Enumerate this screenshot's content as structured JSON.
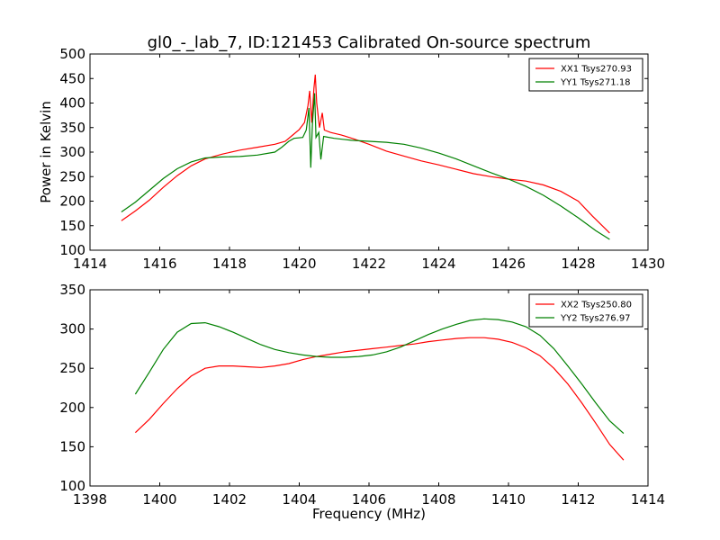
{
  "title": "gl0_-_lab_7, ID:121453 Calibrated On-source spectrum",
  "chart_data": [
    {
      "type": "line",
      "xlabel": "",
      "ylabel": "Power in Kelvin",
      "xlim": [
        1414,
        1430
      ],
      "ylim": [
        100,
        500
      ],
      "xticks": [
        1414,
        1416,
        1418,
        1420,
        1422,
        1424,
        1426,
        1428,
        1430
      ],
      "yticks": [
        100,
        150,
        200,
        250,
        300,
        350,
        400,
        450,
        500
      ],
      "legend_position": "top-right",
      "series": [
        {
          "name": "XX1 Tsys270.93",
          "color": "#ff0000",
          "points": [
            [
              1414.9,
              160
            ],
            [
              1415.3,
              180
            ],
            [
              1415.7,
              202
            ],
            [
              1416.1,
              228
            ],
            [
              1416.5,
              252
            ],
            [
              1416.9,
              272
            ],
            [
              1417.3,
              286
            ],
            [
              1417.8,
              296
            ],
            [
              1418.3,
              304
            ],
            [
              1418.8,
              310
            ],
            [
              1419.3,
              316
            ],
            [
              1419.6,
              322
            ],
            [
              1419.8,
              334
            ],
            [
              1420.0,
              346
            ],
            [
              1420.15,
              360
            ],
            [
              1420.25,
              395
            ],
            [
              1420.3,
              425
            ],
            [
              1420.36,
              360
            ],
            [
              1420.42,
              430
            ],
            [
              1420.46,
              458
            ],
            [
              1420.5,
              400
            ],
            [
              1420.58,
              350
            ],
            [
              1420.66,
              380
            ],
            [
              1420.72,
              345
            ],
            [
              1420.9,
              340
            ],
            [
              1421.2,
              335
            ],
            [
              1421.6,
              326
            ],
            [
              1422.0,
              316
            ],
            [
              1422.5,
              302
            ],
            [
              1423.0,
              292
            ],
            [
              1423.5,
              282
            ],
            [
              1424.0,
              274
            ],
            [
              1424.5,
              265
            ],
            [
              1425.0,
              256
            ],
            [
              1425.5,
              250
            ],
            [
              1426.0,
              245
            ],
            [
              1426.5,
              241
            ],
            [
              1427.0,
              233
            ],
            [
              1427.5,
              220
            ],
            [
              1428.0,
              200
            ],
            [
              1428.4,
              170
            ],
            [
              1428.9,
              135
            ]
          ]
        },
        {
          "name": "YY1 Tsys271.18",
          "color": "#008000",
          "points": [
            [
              1414.9,
              178
            ],
            [
              1415.3,
              198
            ],
            [
              1415.7,
              222
            ],
            [
              1416.1,
              246
            ],
            [
              1416.5,
              266
            ],
            [
              1416.9,
              280
            ],
            [
              1417.3,
              288
            ],
            [
              1417.8,
              290
            ],
            [
              1418.3,
              291
            ],
            [
              1418.8,
              294
            ],
            [
              1419.3,
              300
            ],
            [
              1419.5,
              310
            ],
            [
              1419.7,
              322
            ],
            [
              1419.85,
              328
            ],
            [
              1420.1,
              330
            ],
            [
              1420.2,
              345
            ],
            [
              1420.28,
              390
            ],
            [
              1420.33,
              268
            ],
            [
              1420.38,
              360
            ],
            [
              1420.44,
              420
            ],
            [
              1420.48,
              330
            ],
            [
              1420.56,
              340
            ],
            [
              1420.62,
              285
            ],
            [
              1420.7,
              332
            ],
            [
              1421.0,
              328
            ],
            [
              1421.5,
              324
            ],
            [
              1422.0,
              322
            ],
            [
              1422.5,
              320
            ],
            [
              1423.0,
              316
            ],
            [
              1423.5,
              308
            ],
            [
              1424.0,
              298
            ],
            [
              1424.5,
              286
            ],
            [
              1425.0,
              272
            ],
            [
              1425.5,
              258
            ],
            [
              1426.0,
              245
            ],
            [
              1426.5,
              230
            ],
            [
              1427.0,
              212
            ],
            [
              1427.5,
              190
            ],
            [
              1428.0,
              166
            ],
            [
              1428.5,
              140
            ],
            [
              1428.9,
              122
            ]
          ]
        }
      ]
    },
    {
      "type": "line",
      "xlabel": "Frequency (MHz)",
      "ylabel": "",
      "xlim": [
        1398,
        1414
      ],
      "ylim": [
        100,
        350
      ],
      "xticks": [
        1398,
        1400,
        1402,
        1404,
        1406,
        1408,
        1410,
        1412,
        1414
      ],
      "yticks": [
        100,
        150,
        200,
        250,
        300,
        350
      ],
      "legend_position": "top-right",
      "series": [
        {
          "name": "XX2 Tsys250.80",
          "color": "#ff0000",
          "points": [
            [
              1399.3,
              168
            ],
            [
              1399.7,
              185
            ],
            [
              1400.1,
              205
            ],
            [
              1400.5,
              224
            ],
            [
              1400.9,
              240
            ],
            [
              1401.3,
              250
            ],
            [
              1401.7,
              253
            ],
            [
              1402.1,
              253
            ],
            [
              1402.5,
              252
            ],
            [
              1402.9,
              251
            ],
            [
              1403.3,
              253
            ],
            [
              1403.7,
              256
            ],
            [
              1404.1,
              261
            ],
            [
              1404.5,
              265
            ],
            [
              1404.9,
              268
            ],
            [
              1405.3,
              271
            ],
            [
              1405.7,
              273
            ],
            [
              1406.1,
              275
            ],
            [
              1406.5,
              277
            ],
            [
              1406.9,
              279
            ],
            [
              1407.3,
              281
            ],
            [
              1407.7,
              284
            ],
            [
              1408.1,
              286
            ],
            [
              1408.5,
              288
            ],
            [
              1408.9,
              289
            ],
            [
              1409.3,
              289
            ],
            [
              1409.7,
              287
            ],
            [
              1410.1,
              283
            ],
            [
              1410.5,
              276
            ],
            [
              1410.9,
              266
            ],
            [
              1411.3,
              250
            ],
            [
              1411.7,
              230
            ],
            [
              1412.1,
              206
            ],
            [
              1412.5,
              180
            ],
            [
              1412.9,
              153
            ],
            [
              1413.3,
              133
            ]
          ]
        },
        {
          "name": "YY2 Tsys276.97",
          "color": "#008000",
          "points": [
            [
              1399.3,
              217
            ],
            [
              1399.7,
              245
            ],
            [
              1400.1,
              274
            ],
            [
              1400.5,
              296
            ],
            [
              1400.9,
              307
            ],
            [
              1401.3,
              308
            ],
            [
              1401.7,
              303
            ],
            [
              1402.1,
              296
            ],
            [
              1402.5,
              288
            ],
            [
              1402.9,
              280
            ],
            [
              1403.3,
              274
            ],
            [
              1403.7,
              270
            ],
            [
              1404.1,
              267
            ],
            [
              1404.5,
              265
            ],
            [
              1404.9,
              264
            ],
            [
              1405.3,
              264
            ],
            [
              1405.7,
              265
            ],
            [
              1406.1,
              267
            ],
            [
              1406.5,
              271
            ],
            [
              1406.9,
              277
            ],
            [
              1407.3,
              285
            ],
            [
              1407.7,
              293
            ],
            [
              1408.1,
              300
            ],
            [
              1408.5,
              306
            ],
            [
              1408.9,
              311
            ],
            [
              1409.3,
              313
            ],
            [
              1409.7,
              312
            ],
            [
              1410.1,
              309
            ],
            [
              1410.5,
              303
            ],
            [
              1410.9,
              292
            ],
            [
              1411.3,
              275
            ],
            [
              1411.7,
              253
            ],
            [
              1412.1,
              230
            ],
            [
              1412.5,
              206
            ],
            [
              1412.9,
              183
            ],
            [
              1413.3,
              167
            ]
          ]
        }
      ]
    }
  ]
}
